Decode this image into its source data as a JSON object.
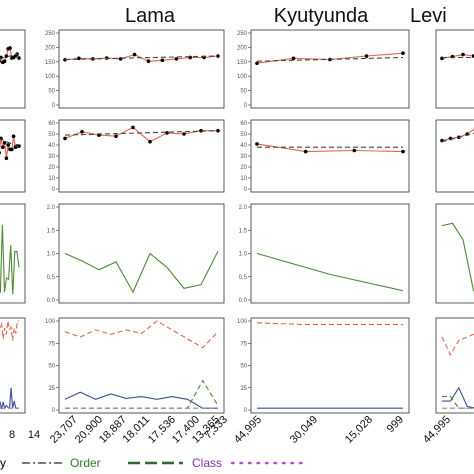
{
  "chart_data": [
    {
      "type": "line",
      "panel_title": "Lama",
      "x_ticks": [
        "23,707",
        "20,900",
        "18,887",
        "18,011",
        "17,536",
        "17,400",
        "13,365",
        "7,333"
      ],
      "rows": [
        {
          "ylim": [
            0,
            250
          ],
          "yticks": [
            "0",
            "50",
            "100",
            "150",
            "200",
            "250"
          ],
          "series": [
            {
              "values": [
                155,
                170,
                158,
                170,
                152,
                165,
                148,
                152,
                170,
                195,
                198,
                163,
                165,
                170,
                177,
                163
              ],
              "color": "#e0664e",
              "style": "solid",
              "points": true
            },
            {
              "values": [
                154,
                178
              ],
              "x_range": [
                0,
                15
              ],
              "color": "#444444",
              "style": "dashed"
            }
          ]
        },
        {
          "ylim": [
            0,
            60
          ],
          "yticks": [
            "0",
            "10",
            "20",
            "30",
            "40",
            "50",
            "60"
          ],
          "series": [
            {
              "values": [
                38,
                57,
                37,
                50,
                33,
                46,
                38,
                42,
                28,
                40,
                36,
                36,
                48,
                38,
                39,
                39
              ],
              "color": "#e0664e",
              "style": "solid",
              "points": true
            },
            {
              "values": [
                49,
                38
              ],
              "x_range": [
                0,
                15
              ],
              "color": "#444444",
              "style": "dashed"
            }
          ]
        },
        {
          "ylim": [
            0,
            2
          ],
          "yticks": [
            "0.0",
            "0.5",
            "1.0",
            "1.5",
            "2.0"
          ],
          "series": [
            {
              "values": [
                0.7,
                0.13,
                0.2,
                0.7,
                0.15,
                1.62,
                0.17,
                0.47,
                0.45,
                1.18,
                0.12,
                1.04,
                1.04,
                0.7
              ],
              "color": "#4f8a35",
              "style": "solid"
            }
          ]
        },
        {
          "ylim": [
            0,
            100
          ],
          "yticks": [
            "0",
            "25",
            "50",
            "75",
            "100"
          ],
          "series": [
            {
              "values": [
                90,
                75,
                95,
                82,
                100,
                92,
                98,
                80,
                92,
                85,
                100,
                90,
                93,
                78,
                92,
                86,
                100,
                100
              ],
              "color": "#e0664e",
              "style": "dashed"
            },
            {
              "values": [
                18,
                33,
                12,
                14,
                2,
                10,
                1,
                9,
                2,
                5,
                3,
                2,
                25,
                2,
                10,
                2,
                2,
                2
              ],
              "color": "#3b4f96",
              "style": "solid"
            },
            {
              "values": [
                2,
                2,
                2,
                2,
                2,
                2,
                2,
                2,
                2,
                2,
                2,
                2,
                2,
                2,
                2,
                2,
                2,
                2
              ],
              "color": "#8f8f8f",
              "style": "dashed"
            }
          ]
        }
      ]
    },
    {
      "type": "line",
      "panel_title": "Kyutyunda",
      "x_ticks": [
        "44,995",
        "30,049",
        "15,028",
        "999"
      ],
      "rows": [
        {
          "ylim": [
            0,
            250
          ],
          "yticks": [
            "0",
            "50",
            "100",
            "150",
            "200",
            "250"
          ],
          "series": [
            {
              "values": [
                157,
                162,
                160,
                163,
                160,
                175,
                152,
                155,
                160,
                165,
                165,
                170
              ],
              "color": "#e0664e",
              "style": "solid",
              "points": true
            },
            {
              "values": [
                158,
                170
              ],
              "x_range": [
                0,
                11
              ],
              "color": "#444444",
              "style": "dashed"
            }
          ]
        },
        {
          "ylim": [
            0,
            60
          ],
          "yticks": [
            "0",
            "10",
            "20",
            "30",
            "40",
            "50",
            "60"
          ],
          "series": [
            {
              "values": [
                46,
                52,
                49,
                48,
                56,
                43,
                51,
                50,
                53,
                53
              ],
              "color": "#e0664e",
              "style": "solid",
              "points": true
            },
            {
              "values": [
                49,
                53
              ],
              "x_range": [
                0,
                9
              ],
              "color": "#444444",
              "style": "dashed"
            }
          ]
        },
        {
          "ylim": [
            0,
            2
          ],
          "yticks": [
            "0.0",
            "0.5",
            "1.0",
            "1.5",
            "2.0"
          ],
          "series": [
            {
              "values": [
                1,
                0.84,
                0.65,
                0.82,
                0.17,
                1.0,
                0.7,
                0.25,
                0.33,
                1.05
              ],
              "color": "#4f8a35",
              "style": "solid"
            }
          ]
        },
        {
          "ylim": [
            0,
            100
          ],
          "yticks": [
            "0",
            "25",
            "50",
            "75",
            "100"
          ],
          "series": [
            {
              "values": [
                88,
                82,
                90,
                85,
                90,
                86,
                100,
                90,
                80,
                70,
                88
              ],
              "color": "#e0664e",
              "style": "dashed"
            },
            {
              "values": [
                12,
                20,
                12,
                18,
                13,
                15,
                12,
                15,
                12,
                2,
                2
              ],
              "color": "#3b4f96",
              "style": "solid"
            },
            {
              "values": [
                2,
                2,
                2,
                2,
                2,
                2,
                2,
                2,
                2,
                33,
                5
              ],
              "color": "#4f8a35",
              "style": "dashed"
            },
            {
              "values": [
                2,
                2,
                2,
                2,
                2,
                2,
                2,
                2,
                2,
                2,
                2
              ],
              "color": "#8f8f8f",
              "style": "dashed"
            }
          ]
        }
      ]
    },
    {
      "type": "line",
      "panel_title": "Levi",
      "x_ticks": [
        "44,995"
      ],
      "rows": [
        {
          "ylim": [
            0,
            250
          ],
          "yticks": [
            "0",
            "50",
            "100",
            "150",
            "200",
            "250"
          ],
          "series": [
            {
              "values": [
                145,
                162,
                158,
                170,
                180
              ],
              "color": "#e0664e",
              "style": "solid",
              "points": true
            },
            {
              "values": [
                152,
                165
              ],
              "x_range": [
                0,
                4
              ],
              "color": "#444444",
              "style": "dashed"
            }
          ]
        },
        {
          "ylim": [
            0,
            60
          ],
          "yticks": [
            "0",
            "10",
            "20",
            "30",
            "40",
            "50",
            "60"
          ],
          "series": [
            {
              "values": [
                41,
                34,
                35,
                34
              ],
              "color": "#e0664e",
              "style": "solid",
              "points": true
            },
            {
              "values": [
                38,
                38
              ],
              "x_range": [
                0,
                3
              ],
              "color": "#444444",
              "style": "dashed"
            }
          ]
        },
        {
          "ylim": [
            0,
            2
          ],
          "yticks": [
            "0.0",
            "0.5",
            "1.0",
            "1.5",
            "2.0"
          ],
          "series": [
            {
              "values": [
                1,
                0.55,
                0.2
              ],
              "color": "#4f8a35",
              "style": "solid"
            }
          ]
        },
        {
          "ylim": [
            0,
            100
          ],
          "yticks": [
            "0",
            "25",
            "50",
            "75",
            "100"
          ],
          "series": [
            {
              "values": [
                98,
                96,
                96,
                96
              ],
              "color": "#e0664e",
              "style": "dashed"
            },
            {
              "values": [
                2,
                2,
                2,
                2
              ],
              "color": "#3b4f96",
              "style": "solid"
            }
          ]
        }
      ]
    },
    {
      "type": "line",
      "panel_title": "",
      "partial": true,
      "x_ticks": [
        "8",
        "14"
      ],
      "rows": [
        {
          "ylim": [
            0,
            250
          ],
          "series": [
            {
              "values": [
                162,
                168,
                175,
                170,
                172
              ],
              "color": "#e0664e",
              "style": "solid",
              "points": true
            },
            {
              "values": [
                165,
                165
              ],
              "x_range": [
                0,
                4
              ],
              "color": "#444444",
              "style": "dashed"
            }
          ]
        },
        {
          "ylim": [
            0,
            60
          ],
          "series": [
            {
              "values": [
                44,
                46,
                47,
                50,
                55,
                56
              ],
              "color": "#e0664e",
              "style": "solid",
              "points": true
            },
            {
              "values": [
                43,
                53
              ],
              "x_range": [
                0,
                5
              ],
              "color": "#444444",
              "style": "dashed"
            }
          ]
        },
        {
          "ylim": [
            0,
            2
          ],
          "series": [
            {
              "values": [
                1.6,
                1.65,
                1.3,
                0.2,
                0.05
              ],
              "color": "#4f8a35",
              "style": "solid"
            }
          ]
        },
        {
          "ylim": [
            0,
            100
          ],
          "series": [
            {
              "values": [
                82,
                62,
                78,
                82,
                86,
                76
              ],
              "color": "#e0664e",
              "style": "dashed"
            },
            {
              "values": [
                10,
                10,
                25,
                4,
                2,
                14
              ],
              "color": "#3b4f96",
              "style": "solid"
            },
            {
              "values": [
                15,
                15,
                2,
                2,
                2,
                12
              ],
              "color": "#4f8a35",
              "style": "dashed"
            },
            {
              "values": [
                2,
                2,
                2,
                2,
                2,
                2
              ],
              "color": "#8f8f8f",
              "style": "dashed"
            }
          ]
        }
      ]
    }
  ],
  "legend": {
    "entries": [
      {
        "label": "y",
        "color": "#4a4a4a"
      },
      {
        "label": "Order",
        "color": "#2f7d2c",
        "line_color": "#7a7a7a",
        "line_style": "dashdot"
      },
      {
        "label": "Class",
        "color": "#8a2eb0",
        "line_color": "#2f6b2c",
        "line_style": "longdash"
      },
      {
        "label": "",
        "line_color": "#b04fd0",
        "line_style": "dotted"
      }
    ]
  }
}
